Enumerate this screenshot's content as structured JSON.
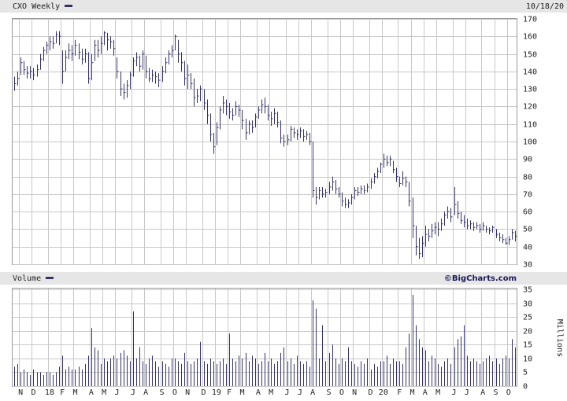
{
  "chart_data": [
    {
      "type": "ohlc",
      "title": "CXO Weekly",
      "date": "10/18/20",
      "color": "#33336a",
      "high": [
        137,
        140,
        148,
        146,
        143,
        143,
        142,
        144,
        150,
        154,
        157,
        160,
        160,
        163,
        163,
        152,
        152,
        156,
        155,
        158,
        156,
        153,
        153,
        151,
        150,
        158,
        158,
        160,
        163,
        162,
        160,
        158,
        148,
        140,
        133,
        135,
        140,
        148,
        151,
        149,
        152,
        149,
        142,
        141,
        140,
        139,
        143,
        148,
        152,
        155,
        161,
        158,
        151,
        146,
        144,
        139,
        136,
        130,
        132,
        130,
        124,
        116,
        105,
        111,
        120,
        126,
        124,
        122,
        119,
        123,
        121,
        118,
        113,
        112,
        112,
        116,
        120,
        124,
        125,
        121,
        117,
        119,
        117,
        112,
        104,
        104,
        109,
        108,
        107,
        108,
        107,
        106,
        105,
        100,
        74,
        74,
        74,
        73,
        77,
        80,
        78,
        74,
        71,
        68,
        67,
        70,
        74,
        74,
        75,
        75,
        76,
        79,
        82,
        85,
        88,
        93,
        92,
        92,
        89,
        85,
        80,
        83,
        80,
        77,
        68,
        52,
        45,
        46,
        52,
        50,
        53,
        54,
        54,
        56,
        60,
        63,
        62,
        74,
        66,
        60,
        58,
        56,
        55,
        54,
        54,
        53,
        54,
        52,
        51,
        52,
        50,
        48,
        47,
        45,
        46,
        50,
        49
      ],
      "low": [
        129,
        132,
        138,
        138,
        136,
        136,
        135,
        137,
        141,
        146,
        150,
        152,
        153,
        156,
        155,
        133,
        140,
        147,
        146,
        149,
        147,
        144,
        145,
        133,
        135,
        146,
        148,
        150,
        155,
        152,
        153,
        149,
        136,
        126,
        124,
        125,
        130,
        137,
        143,
        140,
        141,
        136,
        134,
        134,
        133,
        131,
        134,
        139,
        144,
        148,
        152,
        145,
        140,
        132,
        130,
        130,
        120,
        122,
        123,
        118,
        110,
        100,
        93,
        98,
        107,
        116,
        115,
        113,
        112,
        115,
        114,
        107,
        101,
        104,
        105,
        108,
        113,
        116,
        116,
        112,
        109,
        110,
        108,
        99,
        97,
        98,
        100,
        102,
        101,
        102,
        100,
        101,
        98,
        68,
        64,
        67,
        68,
        68,
        70,
        72,
        70,
        68,
        63,
        62,
        62,
        64,
        67,
        69,
        70,
        70,
        71,
        73,
        76,
        79,
        82,
        85,
        86,
        86,
        82,
        77,
        74,
        75,
        74,
        63,
        45,
        35,
        33,
        34,
        40,
        43,
        45,
        47,
        46,
        49,
        52,
        56,
        54,
        58,
        56,
        53,
        51,
        50,
        50,
        49,
        50,
        48,
        49,
        48,
        47,
        48,
        45,
        43,
        42,
        41,
        41,
        44,
        43
      ],
      "close": [
        133,
        136,
        145,
        141,
        139,
        140,
        138,
        141,
        147,
        152,
        155,
        157,
        156,
        161,
        160,
        140,
        148,
        152,
        150,
        155,
        151,
        147,
        150,
        136,
        145,
        155,
        152,
        156,
        162,
        158,
        157,
        153,
        140,
        130,
        128,
        132,
        138,
        146,
        148,
        143,
        150,
        140,
        136,
        138,
        137,
        135,
        140,
        145,
        150,
        152,
        160,
        150,
        145,
        136,
        138,
        133,
        125,
        126,
        130,
        122,
        115,
        104,
        97,
        108,
        118,
        122,
        120,
        117,
        115,
        120,
        118,
        112,
        105,
        110,
        108,
        114,
        118,
        121,
        120,
        115,
        113,
        116,
        111,
        102,
        100,
        101,
        107,
        105,
        104,
        106,
        103,
        104,
        100,
        72,
        68,
        72,
        70,
        71,
        74,
        77,
        73,
        70,
        66,
        64,
        65,
        68,
        72,
        71,
        73,
        72,
        74,
        77,
        80,
        83,
        87,
        90,
        88,
        90,
        84,
        80,
        76,
        79,
        77,
        66,
        52,
        40,
        36,
        42,
        47,
        46,
        49,
        51,
        50,
        53,
        58,
        60,
        57,
        64,
        59,
        55,
        54,
        52,
        53,
        51,
        52,
        50,
        52,
        50,
        49,
        51,
        47,
        45,
        44,
        42,
        44,
        48,
        46
      ],
      "ylim": [
        30,
        170
      ],
      "yticks": [
        30,
        40,
        50,
        60,
        70,
        80,
        90,
        100,
        110,
        120,
        130,
        140,
        150,
        160,
        170
      ],
      "grid": true
    },
    {
      "type": "bar",
      "title": "Volume",
      "source": "©BigCharts.com",
      "ylabel": "Millions",
      "color": "#33336a",
      "categories": [
        null,
        null,
        "N",
        null,
        null,
        null,
        "D",
        null,
        null,
        null,
        null,
        "18",
        null,
        null,
        null,
        "F",
        null,
        null,
        null,
        "M",
        null,
        null,
        null,
        null,
        "A",
        null,
        null,
        null,
        "M",
        null,
        null,
        null,
        "J",
        null,
        null,
        null,
        null,
        "J",
        null,
        null,
        null,
        "A",
        null,
        null,
        null,
        null,
        "S",
        null,
        null,
        null,
        "O",
        null,
        null,
        null,
        "N",
        null,
        null,
        null,
        null,
        "D",
        null,
        null,
        null,
        "19",
        null,
        null,
        null,
        "F",
        null,
        null,
        null,
        "M",
        null,
        null,
        null,
        null,
        "A",
        null,
        null,
        null,
        "M",
        null,
        null,
        null,
        null,
        "J",
        null,
        null,
        null,
        "J",
        null,
        null,
        null,
        "A",
        null,
        null,
        null,
        null,
        "S",
        null,
        null,
        null,
        "O",
        null,
        null,
        null,
        "N",
        null,
        null,
        null,
        null,
        "D",
        null,
        null,
        null,
        "20",
        null,
        null,
        null,
        null,
        "F",
        null,
        null,
        null,
        "M",
        null,
        null,
        null,
        "A",
        null,
        null,
        null,
        "M",
        null,
        null,
        null,
        null,
        "J",
        null,
        null,
        null,
        "J",
        null,
        null,
        null,
        null,
        "A",
        null,
        null,
        null,
        "S",
        null,
        null,
        null,
        "O",
        null,
        null
      ],
      "values": [
        7,
        8,
        5,
        6,
        5,
        4,
        6,
        5,
        5,
        4,
        5,
        5,
        4,
        5,
        7,
        11,
        6,
        7,
        6,
        6,
        7,
        6,
        8,
        11,
        21,
        14,
        13,
        8,
        10,
        9,
        10,
        11,
        10,
        12,
        13,
        11,
        9,
        27,
        10,
        14,
        9,
        8,
        10,
        11,
        9,
        7,
        9,
        8,
        7,
        10,
        10,
        9,
        8,
        12,
        9,
        8,
        9,
        10,
        16,
        9,
        8,
        10,
        9,
        8,
        9,
        10,
        8,
        19,
        10,
        9,
        11,
        10,
        12,
        9,
        11,
        10,
        8,
        9,
        12,
        9,
        10,
        8,
        9,
        12,
        14,
        9,
        10,
        8,
        11,
        9,
        8,
        9,
        7,
        31,
        28,
        10,
        22,
        9,
        12,
        15,
        10,
        8,
        10,
        9,
        14,
        9,
        8,
        7,
        9,
        8,
        10,
        6,
        8,
        7,
        9,
        9,
        11,
        8,
        10,
        9,
        9,
        8,
        14,
        19,
        33,
        22,
        17,
        14,
        13,
        9,
        11,
        10,
        8,
        7,
        9,
        10,
        8,
        14,
        17,
        18,
        22,
        11,
        9,
        10,
        9,
        8,
        9,
        10,
        11,
        9,
        10,
        8,
        10,
        11,
        10,
        17,
        14
      ],
      "ylim": [
        0,
        35
      ],
      "yticks": [
        0,
        5,
        10,
        15,
        20,
        25,
        30,
        35
      ],
      "grid": true
    }
  ]
}
